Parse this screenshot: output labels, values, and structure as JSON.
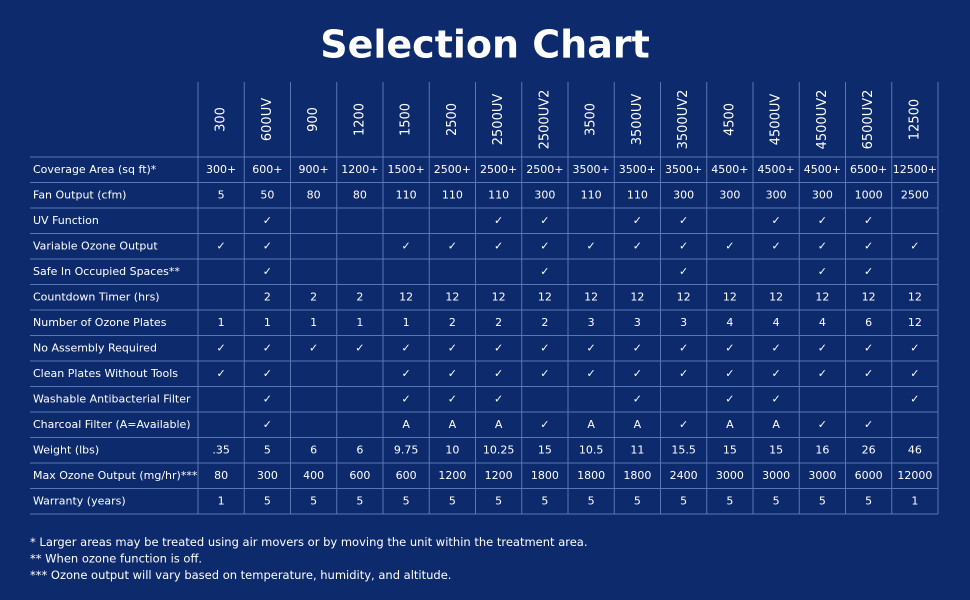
{
  "title": "Selection Chart",
  "table": {
    "columns": [
      "300",
      "600UV",
      "900",
      "1200",
      "1500",
      "2500",
      "2500UV",
      "2500UV2",
      "3500",
      "3500UV",
      "3500UV2",
      "4500",
      "4500UV",
      "4500UV2",
      "6500UV2",
      "12500"
    ],
    "rows": [
      {
        "label": "Coverage Area (sq ft)*",
        "cells": [
          "300+",
          "600+",
          "900+",
          "1200+",
          "1500+",
          "2500+",
          "2500+",
          "2500+",
          "3500+",
          "3500+",
          "3500+",
          "4500+",
          "4500+",
          "4500+",
          "6500+",
          "12500+"
        ]
      },
      {
        "label": "Fan Output (cfm)",
        "cells": [
          "5",
          "50",
          "80",
          "80",
          "110",
          "110",
          "110",
          "300",
          "110",
          "110",
          "300",
          "300",
          "300",
          "300",
          "1000",
          "2500"
        ]
      },
      {
        "label": "UV Function",
        "cells": [
          null,
          "✓",
          null,
          null,
          null,
          null,
          "✓",
          "✓",
          null,
          "✓",
          "✓",
          null,
          "✓",
          "✓",
          "✓",
          null
        ]
      },
      {
        "label": "Variable Ozone Output",
        "cells": [
          "✓",
          "✓",
          null,
          null,
          "✓",
          "✓",
          "✓",
          "✓",
          "✓",
          "✓",
          "✓",
          "✓",
          "✓",
          "✓",
          "✓",
          "✓"
        ]
      },
      {
        "label": "Safe In Occupied Spaces**",
        "cells": [
          null,
          "✓",
          null,
          null,
          null,
          null,
          null,
          "✓",
          null,
          null,
          "✓",
          null,
          null,
          "✓",
          "✓",
          null
        ]
      },
      {
        "label": "Countdown Timer (hrs)",
        "cells": [
          null,
          "2",
          "2",
          "2",
          "12",
          "12",
          "12",
          "12",
          "12",
          "12",
          "12",
          "12",
          "12",
          "12",
          "12",
          "12"
        ]
      },
      {
        "label": "Number of Ozone Plates",
        "cells": [
          "1",
          "1",
          "1",
          "1",
          "1",
          "2",
          "2",
          "2",
          "3",
          "3",
          "3",
          "4",
          "4",
          "4",
          "6",
          "12"
        ]
      },
      {
        "label": "No Assembly Required",
        "cells": [
          "✓",
          "✓",
          "✓",
          "✓",
          "✓",
          "✓",
          "✓",
          "✓",
          "✓",
          "✓",
          "✓",
          "✓",
          "✓",
          "✓",
          "✓",
          "✓"
        ]
      },
      {
        "label": "Clean Plates Without Tools",
        "cells": [
          "✓",
          "✓",
          null,
          null,
          "✓",
          "✓",
          "✓",
          "✓",
          "✓",
          "✓",
          "✓",
          "✓",
          "✓",
          "✓",
          "✓",
          "✓"
        ]
      },
      {
        "label": "Washable Antibacterial Filter",
        "cells": [
          null,
          "✓",
          null,
          null,
          "✓",
          "✓",
          "✓",
          null,
          null,
          "✓",
          null,
          "✓",
          "✓",
          null,
          null,
          "✓"
        ]
      },
      {
        "label": "Charcoal Filter  (A=Available)",
        "cells": [
          null,
          "✓",
          null,
          null,
          "A",
          "A",
          "A",
          "✓",
          "A",
          "A",
          "✓",
          "A",
          "A",
          "✓",
          "✓",
          null
        ]
      },
      {
        "label": "Weight (lbs)",
        "cells": [
          ".35",
          "5",
          "6",
          "6",
          "9.75",
          "10",
          "10.25",
          "15",
          "10.5",
          "11",
          "15.5",
          "15",
          "15",
          "16",
          "26",
          "46"
        ]
      },
      {
        "label": "Max Ozone Output (mg/hr)***",
        "cells": [
          "80",
          "300",
          "400",
          "600",
          "600",
          "1200",
          "1200",
          "1800",
          "1800",
          "1800",
          "2400",
          "3000",
          "3000",
          "3000",
          "6000",
          "12000"
        ]
      },
      {
        "label": "Warranty (years)",
        "cells": [
          "1",
          "5",
          "5",
          "5",
          "5",
          "5",
          "5",
          "5",
          "5",
          "5",
          "5",
          "5",
          "5",
          "5",
          "5",
          "1"
        ]
      }
    ]
  },
  "footnotes": [
    "* Larger areas may be treated using air movers or by moving the unit within the treatment area.",
    "** When ozone function is off.",
    "*** Ozone output will vary based on temperature, humidity, and altitude."
  ]
}
